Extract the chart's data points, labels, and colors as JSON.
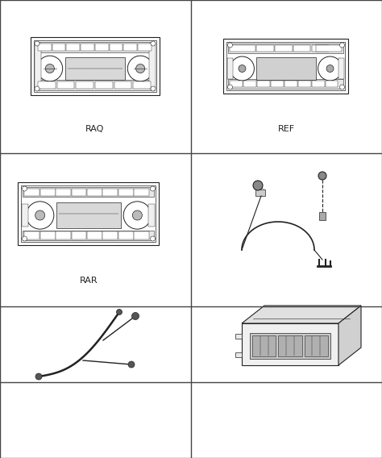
{
  "background_color": "#ffffff",
  "grid_color": "#444444",
  "line_color": "#222222",
  "label_color": "#222222",
  "grid_rows": 4,
  "grid_cols": 2,
  "labels": {
    "cell_00": "RAQ",
    "cell_01": "REF",
    "cell_10": "RAR"
  },
  "label_fontsize": 8,
  "figsize": [
    4.74,
    5.68
  ],
  "dpi": 100
}
